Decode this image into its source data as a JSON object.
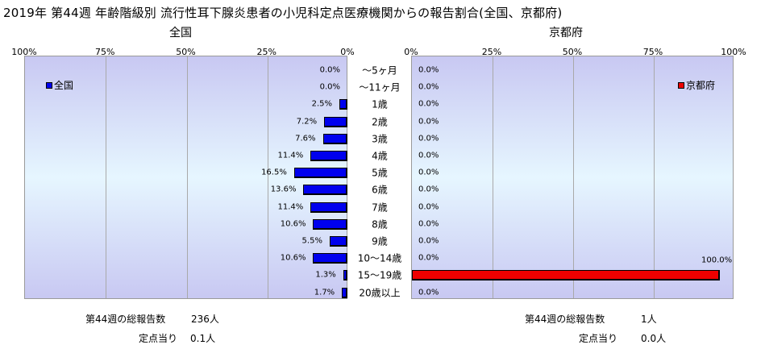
{
  "title": "2019年 第44週 年齢階級別 流行性耳下腺炎患者の小児科定点医療機関からの報告割合(全国、京都府)",
  "chart_data": [
    {
      "type": "bar",
      "orientation": "horizontal",
      "direction": "right-to-left",
      "subtitle": "全国",
      "legend": "全国",
      "legend_position": "top-left",
      "color": "#0000ee",
      "axis_ticks": [
        "100%",
        "75%",
        "50%",
        "25%",
        "0%"
      ],
      "xlim": [
        0,
        100
      ],
      "grid": true,
      "categories": [
        "～5ヶ月",
        "～11ヶ月",
        "1歳",
        "2歳",
        "3歳",
        "4歳",
        "5歳",
        "6歳",
        "7歳",
        "8歳",
        "9歳",
        "10～14歳",
        "15～19歳",
        "20歳以上"
      ],
      "values": [
        0.0,
        0.0,
        2.5,
        7.2,
        7.6,
        11.4,
        16.5,
        13.6,
        11.4,
        10.6,
        5.5,
        10.6,
        1.3,
        1.7
      ],
      "value_labels": [
        "0.0%",
        "0.0%",
        "2.5%",
        "7.2%",
        "7.6%",
        "11.4%",
        "16.5%",
        "13.6%",
        "11.4%",
        "10.6%",
        "5.5%",
        "10.6%",
        "1.3%",
        "1.7%"
      ]
    },
    {
      "type": "bar",
      "orientation": "horizontal",
      "direction": "left-to-right",
      "subtitle": "京都府",
      "legend": "京都府",
      "legend_position": "top-right",
      "color": "#ee0000",
      "axis_ticks": [
        "0%",
        "25%",
        "50%",
        "75%",
        "100%"
      ],
      "xlim": [
        0,
        100
      ],
      "grid": true,
      "categories": [
        "～5ヶ月",
        "～11ヶ月",
        "1歳",
        "2歳",
        "3歳",
        "4歳",
        "5歳",
        "6歳",
        "7歳",
        "8歳",
        "9歳",
        "10～14歳",
        "15～19歳",
        "20歳以上"
      ],
      "values": [
        0.0,
        0.0,
        0.0,
        0.0,
        0.0,
        0.0,
        0.0,
        0.0,
        0.0,
        0.0,
        0.0,
        0.0,
        100.0,
        0.0
      ],
      "value_labels": [
        "0.0%",
        "0.0%",
        "0.0%",
        "0.0%",
        "0.0%",
        "0.0%",
        "0.0%",
        "0.0%",
        "0.0%",
        "0.0%",
        "0.0%",
        "0.0%",
        "100.0%",
        "0.0%"
      ]
    }
  ],
  "footer": {
    "national": {
      "total_label": "第44週の総報告数",
      "total_value": "236人",
      "per_label": "定点当り",
      "per_value": "0.1人"
    },
    "kyoto": {
      "total_label": "第44週の総報告数",
      "total_value": "1人",
      "per_label": "定点当り",
      "per_value": "0.0人"
    }
  }
}
